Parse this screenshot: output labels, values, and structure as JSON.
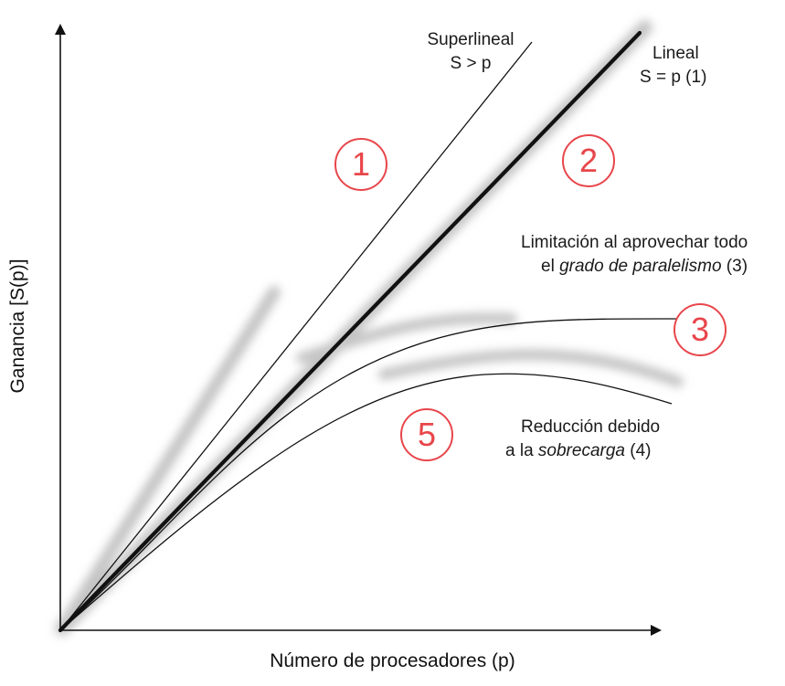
{
  "axes": {
    "x_title": "Número de procesadores (p)",
    "y_title": "Ganancia [S(p)]"
  },
  "curves": {
    "superlineal": {
      "line1": "Superlineal",
      "line2": "S > p"
    },
    "lineal": {
      "line1": "Lineal",
      "line2": "S = p (1)"
    },
    "limitacion": {
      "line1": "Limitación al aprovechar todo",
      "line2_prefix": "el ",
      "line2_italic": "grado de paralelismo",
      "line2_suffix": " (3)"
    },
    "reduccion": {
      "line1": "Reducción debido",
      "line2_prefix": "a la ",
      "line2_italic": "sobrecarga",
      "line2_suffix": " (4)"
    }
  },
  "regions": [
    "1",
    "2",
    "3",
    "5"
  ],
  "colors": {
    "region": "#e8464b",
    "line": "#111111",
    "glow": "#bdbdbd"
  }
}
